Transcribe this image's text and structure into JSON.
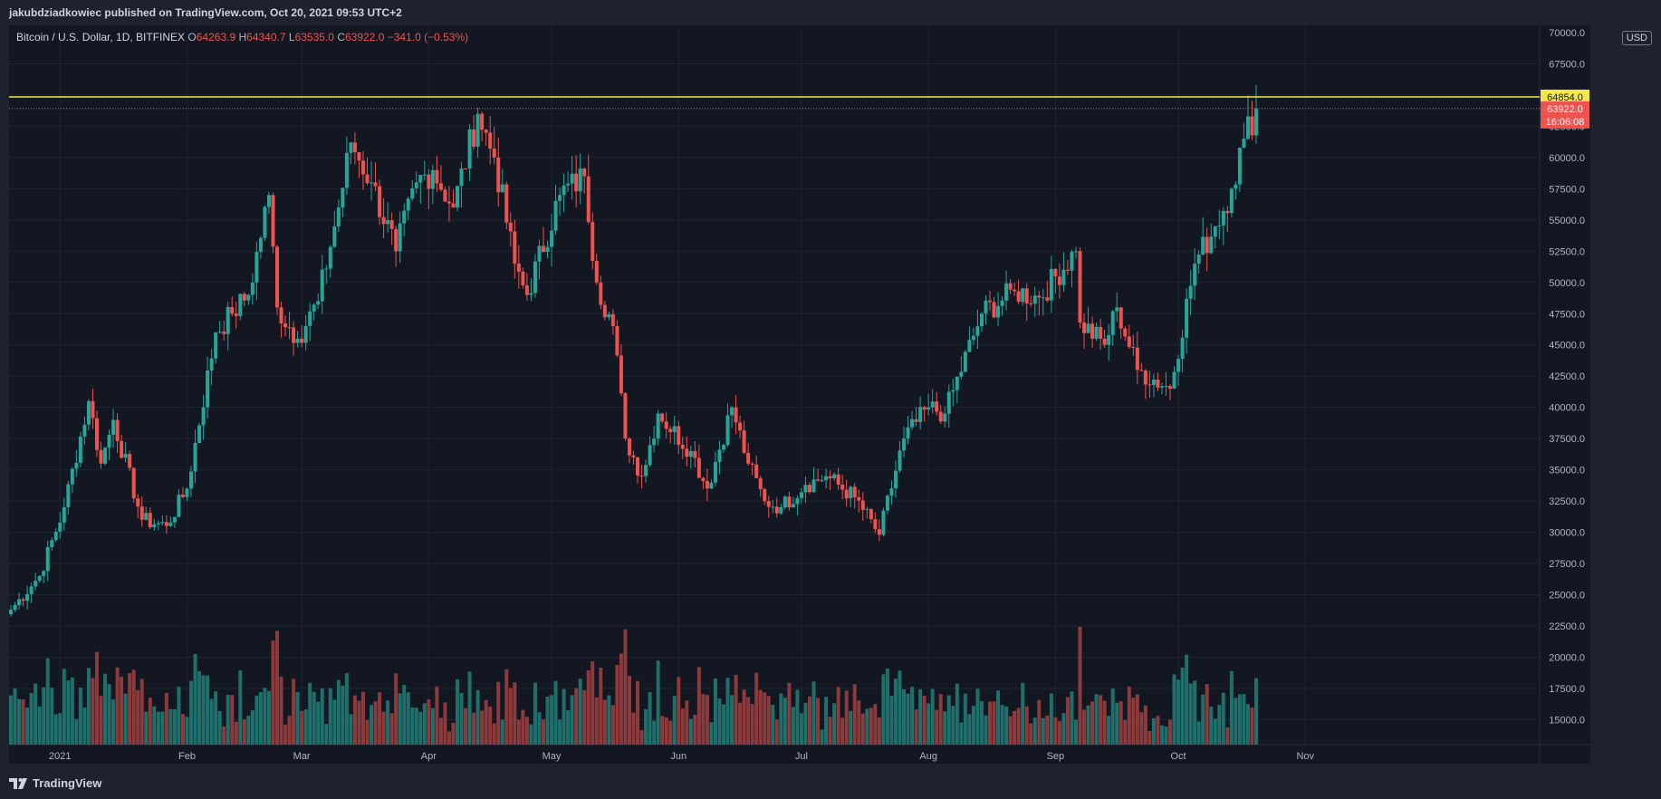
{
  "publisher_text": "jakubdziadkowiec published on TradingView.com, Oct 20, 2021 09:53 UTC+2",
  "brand": "TradingView",
  "currency": "USD",
  "legend": {
    "symbol": "Bitcoin / U.S. Dollar, 1D, BITFINEX",
    "open_label": "O",
    "open": "64263.9",
    "high_label": "H",
    "high": "64340.7",
    "low_label": "L",
    "low": "63535.0",
    "close_label": "C",
    "close": "63922.0",
    "change": "−341.0 (−0.53%)"
  },
  "labels": {
    "resistance_price": "64854.0",
    "last_price": "63922.0",
    "countdown": "16:06:08",
    "top_tick": "70000.0"
  },
  "colors": {
    "up": "#26a69a",
    "down": "#ef5350",
    "up_volume": "#1f6f6a",
    "down_volume": "#8c3a3b",
    "resistance": "#f5e748",
    "background": "#131722"
  },
  "chart_data": {
    "type": "candlestick",
    "title": "Bitcoin / U.S. Dollar, 1D, BITFINEX",
    "x_tick_labels": [
      "2021",
      "Feb",
      "Mar",
      "Apr",
      "May",
      "Jun",
      "Jul",
      "Aug",
      "Sep",
      "Oct",
      "Nov"
    ],
    "y_ticks": [
      15000,
      17500,
      20000,
      22500,
      25000,
      27500,
      30000,
      32500,
      35000,
      37500,
      40000,
      42500,
      45000,
      47500,
      50000,
      52500,
      55000,
      57500,
      60000,
      62500,
      65000,
      67500
    ],
    "ylim": [
      13000,
      70000
    ],
    "resistance_level": 64854.0,
    "last_close": 63922.0,
    "grid": true,
    "start_date": "2020-12-20",
    "end_date": "2021-10-20",
    "anchors": [
      [
        "2020-12-20",
        23800
      ],
      [
        "2020-12-27",
        26500
      ],
      [
        "2021-01-02",
        32000
      ],
      [
        "2021-01-08",
        40500
      ],
      [
        "2021-01-11",
        35500
      ],
      [
        "2021-01-14",
        39000
      ],
      [
        "2021-01-21",
        31000
      ],
      [
        "2021-01-27",
        30500
      ],
      [
        "2021-02-01",
        33500
      ],
      [
        "2021-02-08",
        46000
      ],
      [
        "2021-02-12",
        47500
      ],
      [
        "2021-02-16",
        49000
      ],
      [
        "2021-02-21",
        57000
      ],
      [
        "2021-02-23",
        48000
      ],
      [
        "2021-02-28",
        45500
      ],
      [
        "2021-03-05",
        48500
      ],
      [
        "2021-03-10",
        56000
      ],
      [
        "2021-03-13",
        61200
      ],
      [
        "2021-03-18",
        58000
      ],
      [
        "2021-03-24",
        52500
      ],
      [
        "2021-03-29",
        58000
      ],
      [
        "2021-04-02",
        59000
      ],
      [
        "2021-04-07",
        56000
      ],
      [
        "2021-04-13",
        63500
      ],
      [
        "2021-04-17",
        60000
      ],
      [
        "2021-04-22",
        51500
      ],
      [
        "2021-04-25",
        49000
      ],
      [
        "2021-05-03",
        57000
      ],
      [
        "2021-05-09",
        58500
      ],
      [
        "2021-05-12",
        50000
      ],
      [
        "2021-05-16",
        46500
      ],
      [
        "2021-05-19",
        37500
      ],
      [
        "2021-05-23",
        34500
      ],
      [
        "2021-05-27",
        39500
      ],
      [
        "2021-06-04",
        36500
      ],
      [
        "2021-06-08",
        33500
      ],
      [
        "2021-06-14",
        40000
      ],
      [
        "2021-06-18",
        35500
      ],
      [
        "2021-06-22",
        32500
      ],
      [
        "2021-06-26",
        32000
      ],
      [
        "2021-07-02",
        33800
      ],
      [
        "2021-07-07",
        34500
      ],
      [
        "2021-07-14",
        32800
      ],
      [
        "2021-07-20",
        29800
      ],
      [
        "2021-07-26",
        37500
      ],
      [
        "2021-08-01",
        40000
      ],
      [
        "2021-08-05",
        39500
      ],
      [
        "2021-08-14",
        47500
      ],
      [
        "2021-08-22",
        49300
      ],
      [
        "2021-08-28",
        48800
      ],
      [
        "2021-09-06",
        52500
      ],
      [
        "2021-09-07",
        46800
      ],
      [
        "2021-09-13",
        45000
      ],
      [
        "2021-09-16",
        48000
      ],
      [
        "2021-09-21",
        43000
      ],
      [
        "2021-09-29",
        41500
      ],
      [
        "2021-10-05",
        51500
      ],
      [
        "2021-10-10",
        54500
      ],
      [
        "2021-10-14",
        57500
      ],
      [
        "2021-10-17",
        61500
      ],
      [
        "2021-10-20",
        63922
      ]
    ]
  }
}
